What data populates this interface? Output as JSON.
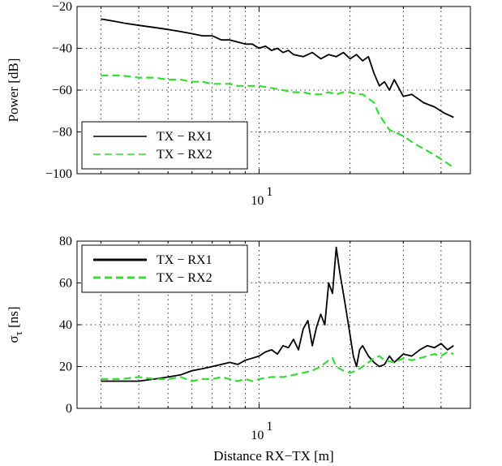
{
  "chart_data": [
    {
      "type": "line",
      "xscale": "log",
      "xlim": [
        2.5,
        50
      ],
      "ylim": [
        -100,
        -20
      ],
      "ylabel": "Power [dB]",
      "xlabel": "",
      "grid": true,
      "xticks_labeled": [
        {
          "value": 10,
          "base": "10",
          "exp": "1"
        }
      ],
      "xticks_minor": [
        3,
        4,
        5,
        6,
        7,
        8,
        9,
        20,
        30,
        40,
        50
      ],
      "yticks": [
        -100,
        -80,
        -60,
        -40,
        -20
      ],
      "yticklabels": [
        "−100",
        "−80",
        "−60",
        "−40",
        "−20"
      ],
      "legend": {
        "position": "bottom-left"
      },
      "series": [
        {
          "name": "TX − RX1",
          "color": "#000000",
          "style": "solid",
          "x": [
            3,
            3.3,
            3.6,
            4,
            4.5,
            5,
            5.5,
            6,
            6.5,
            7,
            7.5,
            8,
            8.5,
            9,
            9.5,
            10,
            10.5,
            11,
            11.5,
            12,
            12.5,
            13,
            14,
            15,
            16,
            17,
            18,
            19,
            20,
            21,
            22,
            23,
            24,
            25,
            26,
            27,
            28,
            30,
            32,
            35,
            38,
            41,
            44
          ],
          "y": [
            -26,
            -27,
            -28,
            -29,
            -30,
            -31,
            -32,
            -33,
            -34,
            -34,
            -36,
            -36,
            -37,
            -38,
            -38,
            -40,
            -39,
            -41,
            -40,
            -42,
            -41,
            -43,
            -44,
            -42,
            -45,
            -43,
            -44,
            -42,
            -45,
            -43,
            -46,
            -44,
            -52,
            -58,
            -56,
            -60,
            -55,
            -63,
            -62,
            -66,
            -68,
            -71,
            -73
          ]
        },
        {
          "name": "TX − RX2",
          "color": "#33dd33",
          "style": "dashed",
          "x": [
            3,
            3.5,
            4,
            4.5,
            5,
            5.5,
            6,
            6.5,
            7,
            7.5,
            8,
            8.5,
            9,
            9.5,
            10,
            11,
            12,
            13,
            14,
            15,
            16,
            17,
            18,
            19,
            20,
            21,
            22,
            23,
            24,
            25,
            27,
            30,
            33,
            36,
            40,
            44
          ],
          "y": [
            -53,
            -53,
            -54,
            -54,
            -55,
            -55,
            -56,
            -56,
            -57,
            -57,
            -57,
            -58,
            -58,
            -58,
            -58,
            -59,
            -60,
            -61,
            -61,
            -62,
            -62,
            -61,
            -62,
            -61,
            -61,
            -62,
            -62,
            -64,
            -66,
            -72,
            -79,
            -82,
            -86,
            -89,
            -93,
            -97
          ]
        }
      ]
    },
    {
      "type": "line",
      "xscale": "log",
      "xlim": [
        2.5,
        50
      ],
      "ylim": [
        0,
        80
      ],
      "ylabel_main": "σ",
      "ylabel_sub": "τ",
      "ylabel_unit": " [ns]",
      "xlabel": "Distance RX−TX [m]",
      "grid": true,
      "xticks_labeled": [
        {
          "value": 10,
          "base": "10",
          "exp": "1"
        }
      ],
      "xticks_minor": [
        3,
        4,
        5,
        6,
        7,
        8,
        9,
        20,
        30,
        40,
        50
      ],
      "yticks": [
        0,
        20,
        40,
        60,
        80
      ],
      "yticklabels": [
        "0",
        "20",
        "40",
        "60",
        "80"
      ],
      "legend": {
        "position": "top-left"
      },
      "series": [
        {
          "name": "TX − RX1",
          "color": "#000000",
          "style": "solid",
          "x": [
            3,
            3.5,
            4,
            4.5,
            5,
            5.5,
            6,
            6.5,
            7,
            7.5,
            8,
            8.5,
            9,
            9.5,
            10,
            10.5,
            11,
            11.5,
            12,
            12.5,
            13,
            13.5,
            14,
            14.5,
            15,
            15.5,
            16,
            16.5,
            17,
            17.5,
            18,
            18.5,
            19,
            19.5,
            20,
            20.5,
            21,
            21.5,
            22,
            23,
            24,
            25,
            26,
            27,
            28,
            29,
            30,
            32,
            34,
            36,
            38,
            40,
            42,
            44
          ],
          "y": [
            13,
            13,
            13,
            14,
            15,
            16,
            18,
            19,
            20,
            21,
            22,
            21,
            23,
            24,
            25,
            27,
            28,
            26,
            30,
            29,
            33,
            28,
            38,
            42,
            30,
            39,
            45,
            40,
            60,
            55,
            77,
            65,
            55,
            45,
            35,
            25,
            20,
            28,
            30,
            25,
            22,
            20,
            21,
            25,
            22,
            24,
            26,
            25,
            28,
            30,
            29,
            31,
            28,
            30
          ]
        },
        {
          "name": "TX − RX2",
          "color": "#33dd33",
          "style": "dashed",
          "x": [
            3,
            3.5,
            4,
            4.5,
            5,
            5.5,
            6,
            6.5,
            7,
            7.5,
            8,
            8.5,
            9,
            9.5,
            10,
            11,
            12,
            13,
            14,
            15,
            16,
            17,
            17.5,
            18,
            19,
            20,
            21,
            22,
            23,
            24,
            25,
            26,
            28,
            30,
            32,
            34,
            36,
            38,
            40,
            42,
            44
          ],
          "y": [
            14,
            14,
            15,
            14,
            14,
            15,
            13,
            14,
            14,
            15,
            14,
            13,
            14,
            13,
            14,
            15,
            15,
            16,
            17,
            18,
            20,
            23,
            24,
            20,
            18,
            17,
            18,
            20,
            22,
            24,
            25,
            23,
            22,
            24,
            23,
            24,
            25,
            26,
            25,
            27,
            26
          ]
        }
      ]
    }
  ]
}
